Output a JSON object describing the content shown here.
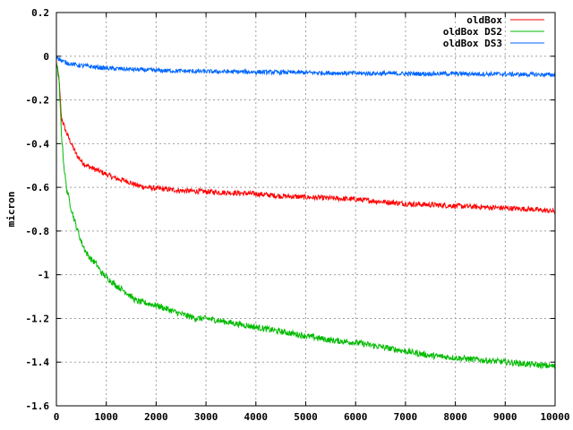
{
  "chart_data": {
    "type": "line",
    "title": "",
    "xlabel": "",
    "ylabel": "micron",
    "xlim": [
      0,
      10000
    ],
    "ylim": [
      -1.6,
      0.2
    ],
    "xticks": [
      0,
      1000,
      2000,
      3000,
      4000,
      5000,
      6000,
      7000,
      8000,
      9000,
      10000
    ],
    "yticks": [
      0.2,
      0,
      -0.2,
      -0.4,
      -0.6,
      -0.8,
      -1,
      -1.2,
      -1.4,
      -1.6
    ],
    "grid": true,
    "legend_position": "top-right",
    "series": [
      {
        "name": "oldBox",
        "color": "#ff0000",
        "x": [
          0,
          50,
          100,
          200,
          300,
          400,
          500,
          600,
          700,
          800,
          900,
          1000,
          1200,
          1400,
          1600,
          1800,
          2000,
          2500,
          3000,
          3500,
          4000,
          4500,
          5000,
          5500,
          6000,
          6500,
          7000,
          7500,
          8000,
          8500,
          9000,
          9500,
          10000
        ],
        "y": [
          -0.03,
          -0.1,
          -0.28,
          -0.35,
          -0.4,
          -0.45,
          -0.48,
          -0.5,
          -0.51,
          -0.52,
          -0.53,
          -0.54,
          -0.56,
          -0.57,
          -0.59,
          -0.6,
          -0.605,
          -0.615,
          -0.62,
          -0.625,
          -0.63,
          -0.64,
          -0.645,
          -0.65,
          -0.655,
          -0.665,
          -0.675,
          -0.68,
          -0.685,
          -0.69,
          -0.695,
          -0.7,
          -0.71
        ]
      },
      {
        "name": "oldBox DS2",
        "color": "#00bb00",
        "x": [
          0,
          50,
          100,
          150,
          200,
          300,
          400,
          500,
          600,
          700,
          800,
          900,
          1000,
          1200,
          1400,
          1600,
          1800,
          2000,
          2500,
          2800,
          3000,
          3500,
          4000,
          4500,
          5000,
          5500,
          6000,
          6500,
          7000,
          7500,
          8000,
          8500,
          9000,
          9500,
          10000
        ],
        "y": [
          -0.03,
          -0.1,
          -0.35,
          -0.5,
          -0.6,
          -0.7,
          -0.78,
          -0.85,
          -0.9,
          -0.93,
          -0.95,
          -0.99,
          -1.01,
          -1.05,
          -1.08,
          -1.12,
          -1.13,
          -1.14,
          -1.18,
          -1.2,
          -1.2,
          -1.22,
          -1.24,
          -1.26,
          -1.28,
          -1.3,
          -1.31,
          -1.33,
          -1.35,
          -1.37,
          -1.38,
          -1.39,
          -1.4,
          -1.41,
          -1.42
        ]
      },
      {
        "name": "oldBox DS3",
        "color": "#0066ff",
        "x": [
          0,
          50,
          100,
          200,
          400,
          600,
          800,
          1000,
          1500,
          2000,
          3000,
          4000,
          5000,
          6000,
          7000,
          8000,
          9000,
          10000
        ],
        "y": [
          0.0,
          -0.01,
          -0.02,
          -0.03,
          -0.04,
          -0.045,
          -0.05,
          -0.055,
          -0.06,
          -0.065,
          -0.07,
          -0.072,
          -0.075,
          -0.078,
          -0.08,
          -0.08,
          -0.082,
          -0.085
        ]
      }
    ]
  }
}
